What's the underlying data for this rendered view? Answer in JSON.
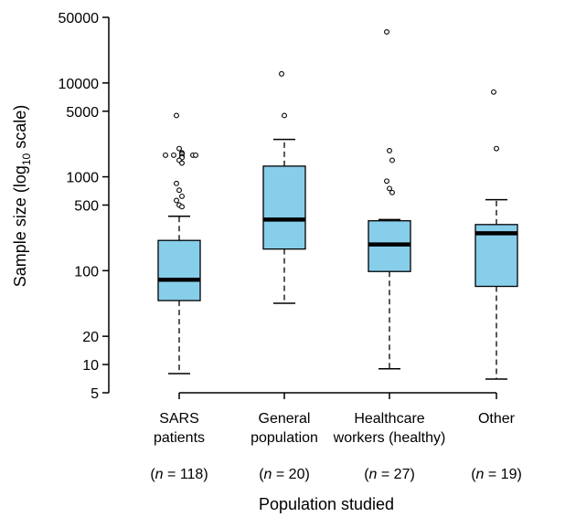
{
  "chart_data": {
    "type": "boxplot",
    "xlabel": "Population studied",
    "ylabel": {
      "prefix": "Sample size (log",
      "sub": "10",
      "suffix": " scale)"
    },
    "yscale": "log10",
    "ylim": [
      5,
      50000
    ],
    "yticks": [
      {
        "value": 5,
        "label": "5"
      },
      {
        "value": 10,
        "label": "10"
      },
      {
        "value": 20,
        "label": "20"
      },
      {
        "value": 100,
        "label": "100"
      },
      {
        "value": 500,
        "label": "500"
      },
      {
        "value": 1000,
        "label": "1000"
      },
      {
        "value": 5000,
        "label": "5000"
      },
      {
        "value": 10000,
        "label": "10000"
      },
      {
        "value": 50000,
        "label": "50000"
      }
    ],
    "box_color": "#87ceeb",
    "categories": [
      {
        "label_lines": [
          "SARS",
          "patients"
        ],
        "n_label": [
          "(",
          "n",
          " = 118)"
        ],
        "whisker_low": 8,
        "q1": 48,
        "median": 80,
        "q3": 210,
        "whisker_high": 380,
        "outliers": [
          4500,
          2000,
          1800,
          1750,
          1700,
          1700,
          1700,
          1700,
          1650,
          1600,
          1500,
          1400,
          850,
          720,
          620,
          560,
          500,
          480
        ]
      },
      {
        "label_lines": [
          "General",
          "population"
        ],
        "n_label": [
          "(",
          "n",
          " = 20)"
        ],
        "whisker_low": 45,
        "q1": 170,
        "median": 350,
        "q3": 1300,
        "whisker_high": 2500,
        "outliers": [
          12500,
          4500
        ]
      },
      {
        "label_lines": [
          "Healthcare",
          "workers (healthy)"
        ],
        "n_label": [
          "(",
          "n",
          " = 27)"
        ],
        "whisker_low": 9,
        "q1": 98,
        "median": 190,
        "q3": 340,
        "whisker_high": 350,
        "outliers": [
          35000,
          1900,
          1500,
          900,
          750,
          680
        ]
      },
      {
        "label_lines": [
          "Other"
        ],
        "n_label": [
          "(",
          "n",
          " = 19)"
        ],
        "whisker_low": 7,
        "q1": 68,
        "median": 250,
        "q3": 310,
        "whisker_high": 570,
        "outliers": [
          8000,
          2000
        ]
      }
    ]
  }
}
